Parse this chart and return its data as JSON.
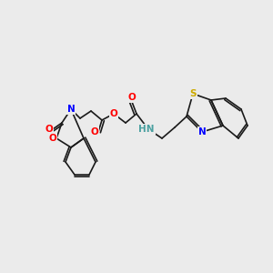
{
  "bg_color": "#ebebeb",
  "bond_color": "#1a1a1a",
  "atom_colors": {
    "O": "#ff0000",
    "N": "#0000ff",
    "S": "#ccaa00",
    "H": "#4aa0a0",
    "C": "#1a1a1a"
  },
  "font_size_atom": 7.5,
  "font_size_H": 5.5,
  "line_width": 1.2
}
